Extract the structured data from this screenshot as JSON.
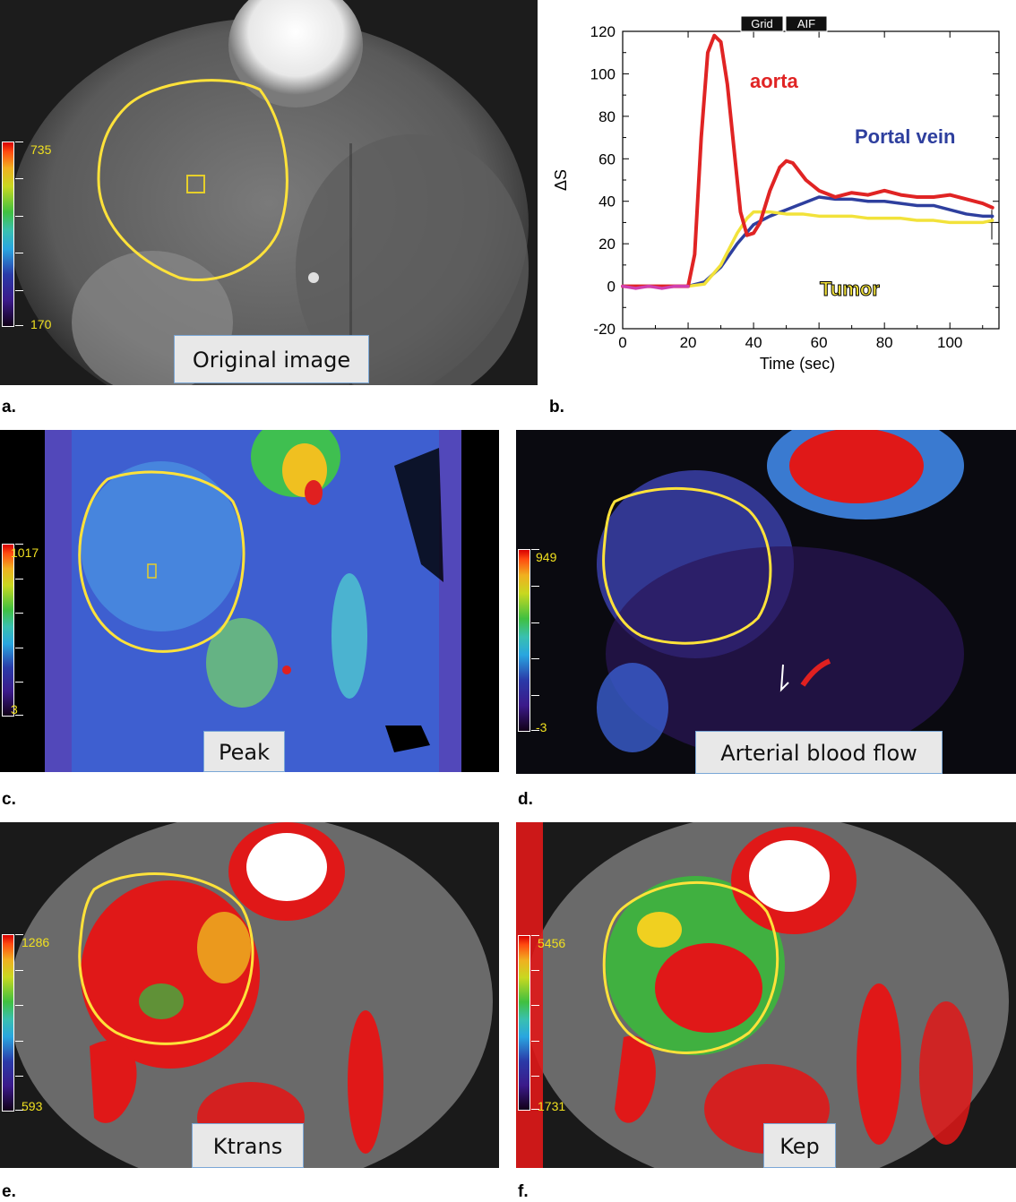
{
  "panels": {
    "a": {
      "label": "a.",
      "caption": "Original image",
      "colorbar": {
        "max": "735",
        "min": "170"
      }
    },
    "b": {
      "label": "b."
    },
    "c": {
      "label": "c.",
      "caption": "Peak",
      "colorbar": {
        "max": "1017",
        "min": "3"
      }
    },
    "d": {
      "label": "d.",
      "caption": "Arterial blood flow",
      "colorbar": {
        "max": "949",
        "min": "-3"
      }
    },
    "e": {
      "label": "e.",
      "caption": "Ktrans",
      "colorbar": {
        "max": "1286",
        "min": "593"
      }
    },
    "f": {
      "label": "f.",
      "caption": "Kep",
      "colorbar": {
        "max": "5456",
        "min": "1731"
      }
    }
  },
  "chart_data": {
    "type": "line",
    "title": "",
    "xlabel": "Time (sec)",
    "ylabel": "ΔS",
    "xlim": [
      0,
      115
    ],
    "ylim": [
      -20,
      120
    ],
    "xticks": [
      0,
      20,
      40,
      60,
      80,
      100
    ],
    "yticks": [
      -20,
      0,
      20,
      40,
      60,
      80,
      100,
      120
    ],
    "grid": false,
    "buttons": [
      "Grid",
      "AIF"
    ],
    "series": [
      {
        "name": "aorta",
        "color": "#e02424",
        "x": [
          0,
          5,
          10,
          15,
          20,
          22,
          24,
          26,
          28,
          30,
          32,
          34,
          36,
          38,
          40,
          42,
          45,
          48,
          50,
          52,
          54,
          56,
          60,
          65,
          70,
          75,
          80,
          85,
          90,
          95,
          100,
          105,
          110,
          113
        ],
        "y": [
          0,
          0,
          0,
          0,
          0,
          15,
          70,
          110,
          118,
          115,
          95,
          65,
          35,
          24,
          25,
          30,
          45,
          56,
          59,
          58,
          54,
          50,
          45,
          42,
          44,
          43,
          45,
          43,
          42,
          42,
          43,
          41,
          39,
          37
        ]
      },
      {
        "name": "Portal vein",
        "color": "#2e3f9e",
        "x": [
          0,
          5,
          10,
          15,
          20,
          25,
          30,
          35,
          40,
          45,
          50,
          55,
          60,
          65,
          70,
          75,
          80,
          85,
          90,
          95,
          100,
          105,
          110,
          113
        ],
        "y": [
          0,
          0,
          0,
          0,
          0,
          2,
          9,
          20,
          29,
          33,
          36,
          39,
          42,
          41,
          41,
          40,
          40,
          39,
          38,
          38,
          36,
          34,
          33,
          33
        ]
      },
      {
        "name": "Tumor",
        "color": "#f2e23a",
        "x": [
          0,
          5,
          10,
          15,
          20,
          25,
          30,
          35,
          38,
          40,
          45,
          50,
          55,
          60,
          65,
          70,
          75,
          80,
          85,
          90,
          95,
          100,
          105,
          110,
          113
        ],
        "y": [
          0,
          0,
          0,
          0,
          0,
          1,
          10,
          25,
          32,
          35,
          35,
          34,
          34,
          33,
          33,
          33,
          32,
          32,
          32,
          31,
          31,
          30,
          30,
          30,
          31
        ]
      },
      {
        "name": "",
        "color": "#d040b0",
        "x": [
          0,
          4,
          8,
          12,
          16,
          20
        ],
        "y": [
          0,
          -1,
          0,
          -1,
          0,
          0
        ]
      }
    ],
    "annotations": [
      "aorta",
      "Portal vein",
      "Tumor"
    ]
  }
}
